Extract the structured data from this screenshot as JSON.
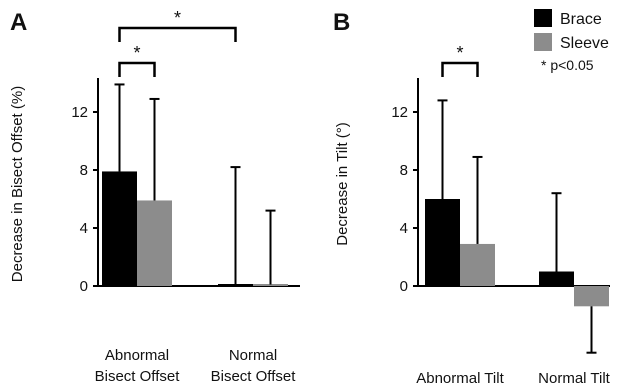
{
  "colors": {
    "brace": "#000000",
    "sleeve": "#8c8c8c",
    "axis": "#000000"
  },
  "legend": {
    "items": [
      {
        "label": "Brace",
        "color": "#000000"
      },
      {
        "label": "Sleeve",
        "color": "#8c8c8c"
      }
    ],
    "note": "* p<0.05",
    "placement": "top-right"
  },
  "chart_data": [
    {
      "panel_label": "A",
      "type": "bar",
      "ylabel": "Decrease in Bisect Offset  (%)",
      "ylim": [
        0,
        14
      ],
      "yticks": [
        0,
        4,
        8,
        12
      ],
      "categories": [
        "Abnormal\nBisect Offset",
        "Normal\nBisect Offset"
      ],
      "series": [
        {
          "name": "Brace",
          "values": [
            7.9,
            0.1
          ],
          "error_upper": [
            6.0,
            8.1
          ]
        },
        {
          "name": "Sleeve",
          "values": [
            5.9,
            0.1
          ],
          "error_upper": [
            7.0,
            5.1
          ]
        }
      ],
      "significance": [
        {
          "label": "*",
          "from": "Abnormal Bisect Offset - Brace",
          "to": "Abnormal Bisect Offset - Sleeve"
        },
        {
          "label": "*",
          "from": "Abnormal Bisect Offset - Brace",
          "to": "Normal Bisect Offset - Brace"
        }
      ]
    },
    {
      "panel_label": "B",
      "type": "bar",
      "ylabel": "Decrease in Tilt (°)",
      "ylim": [
        -4.5,
        14
      ],
      "yticks": [
        0,
        4,
        8,
        12
      ],
      "categories": [
        "Abnormal Tilt",
        "Normal Tilt"
      ],
      "series": [
        {
          "name": "Brace",
          "values": [
            6.0,
            1.0
          ],
          "error_upper": [
            6.8,
            5.4
          ]
        },
        {
          "name": "Sleeve",
          "values": [
            2.9,
            -1.4
          ],
          "error_lower": [
            null,
            3.2
          ],
          "error_upper": [
            6.0,
            null
          ]
        }
      ],
      "significance": [
        {
          "label": "*",
          "from": "Abnormal Tilt - Brace",
          "to": "Abnormal Tilt - Sleeve"
        }
      ]
    }
  ]
}
